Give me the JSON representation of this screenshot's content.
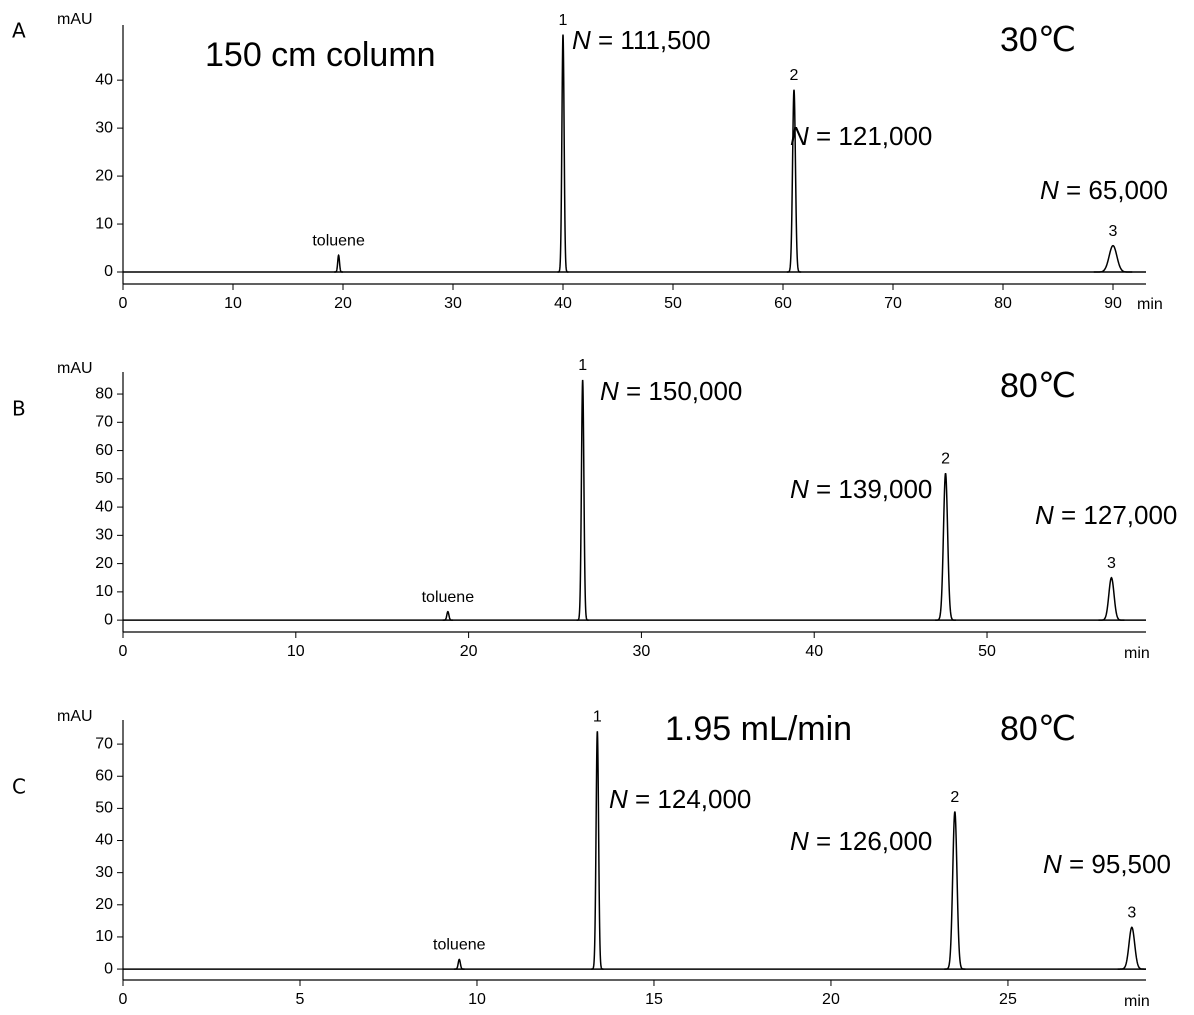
{
  "chart_data": [
    {
      "type": "chromatogram",
      "panel_label": "A",
      "y_label": "mAU",
      "x_label": "min",
      "annotations": [
        "150 cm column",
        "30℃"
      ],
      "xlim": [
        0,
        93
      ],
      "xticks": [
        0,
        10,
        20,
        30,
        40,
        50,
        60,
        70,
        80,
        90
      ],
      "ylim": [
        -2.5,
        51.5
      ],
      "yticks": [
        0,
        10,
        20,
        30,
        40
      ],
      "peaks": [
        {
          "label": "toluene",
          "time": 19.6,
          "height": 3.5,
          "sigma": 0.08
        },
        {
          "label": "1",
          "time": 40,
          "height": 49.5,
          "sigma": 0.1,
          "plate_count": "N = 111,500"
        },
        {
          "label": "2",
          "time": 61,
          "height": 38,
          "sigma": 0.13,
          "plate_count": "N = 121,000"
        },
        {
          "label": "3",
          "time": 90,
          "height": 5.5,
          "sigma": 0.35,
          "plate_count": "N = 65,000"
        }
      ]
    },
    {
      "type": "chromatogram",
      "panel_label": "B",
      "y_label": "mAU",
      "x_label": "min",
      "annotations": [
        "80℃"
      ],
      "xlim": [
        0,
        59.2
      ],
      "xticks": [
        0,
        10,
        20,
        30,
        40,
        50
      ],
      "ylim": [
        -4.2,
        87.8
      ],
      "yticks": [
        0,
        10,
        20,
        30,
        40,
        50,
        60,
        70,
        80
      ],
      "peaks": [
        {
          "label": "toluene",
          "time": 18.8,
          "height": 3,
          "sigma": 0.06
        },
        {
          "label": "1",
          "time": 26.6,
          "height": 85,
          "sigma": 0.07,
          "plate_count": "N = 150,000"
        },
        {
          "label": "2",
          "time": 47.6,
          "height": 52,
          "sigma": 0.12,
          "plate_count": "N = 139,000"
        },
        {
          "label": "3",
          "time": 57.2,
          "height": 15,
          "sigma": 0.15,
          "plate_count": "N = 127,000"
        }
      ]
    },
    {
      "type": "chromatogram",
      "panel_label": "C",
      "y_label": "mAU",
      "x_label": "min",
      "annotations": [
        "1.95 mL/min",
        "80℃"
      ],
      "xlim": [
        0,
        28.9
      ],
      "xticks": [
        0,
        5,
        10,
        15,
        20,
        25
      ],
      "ylim": [
        -3.4,
        77.5
      ],
      "yticks": [
        0,
        10,
        20,
        30,
        40,
        50,
        60,
        70
      ],
      "peaks": [
        {
          "label": "toluene",
          "time": 9.5,
          "height": 3,
          "sigma": 0.03
        },
        {
          "label": "1",
          "time": 13.4,
          "height": 74,
          "sigma": 0.035,
          "plate_count": "N = 124,000"
        },
        {
          "label": "2",
          "time": 23.5,
          "height": 49,
          "sigma": 0.06,
          "plate_count": "N = 126,000"
        },
        {
          "label": "3",
          "time": 28.5,
          "height": 13,
          "sigma": 0.08,
          "plate_count": "N = 95,500"
        }
      ]
    }
  ]
}
